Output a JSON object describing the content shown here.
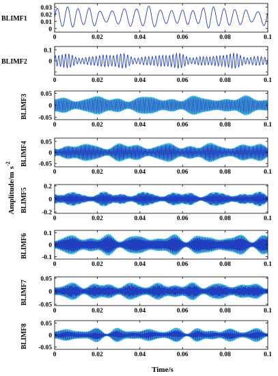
{
  "chart_data": {
    "type": "line",
    "xlabel": "Time/s",
    "ylabel_main": "Amplitude/m",
    "ylabel_unit": "s",
    "ylabel_exp": "-2",
    "xlim": [
      0,
      0.1
    ],
    "xticks": [
      0,
      0.02,
      0.04,
      0.06,
      0.08,
      0.1
    ],
    "xtick_labels": [
      "0",
      "0.02",
      "0.04",
      "0.06",
      "0.08",
      "0.1"
    ],
    "colors": {
      "signal": "#1f3fbf",
      "fill": "#3fd8e0",
      "axis": "#000000"
    },
    "panels": [
      {
        "name": "BLIMF1",
        "ylim": [
          -0.005,
          0.035
        ],
        "yticks": [
          0,
          0.01,
          0.02,
          0.03
        ],
        "ytick_labels": [
          "0",
          "0.01",
          "0.02",
          "0.03"
        ],
        "waveform": {
          "offset": 0.016,
          "carrier_cycles": 19,
          "base_amp": 0.011,
          "mod_depth": 0.45,
          "filled": false
        }
      },
      {
        "name": "BLIMF2",
        "ylim": [
          -0.13,
          0.13
        ],
        "yticks": [
          -0.1,
          0,
          0.1
        ],
        "ytick_labels": [
          "",
          "0",
          "0.1"
        ],
        "waveform": {
          "offset": 0,
          "carrier_cycles": 62,
          "base_amp": 0.045,
          "mod_depth": 0.6,
          "filled": false
        }
      },
      {
        "name": "BLIMF3",
        "ylim": [
          -0.06,
          0.06
        ],
        "yticks": [
          -0.05,
          0,
          0.05
        ],
        "ytick_labels": [
          "-0.05",
          "0",
          "0.05"
        ],
        "waveform": {
          "offset": 0,
          "carrier_cycles": 180,
          "base_amp": 0.026,
          "mod_depth": 0.55,
          "filled": true
        }
      },
      {
        "name": "BLIMF4",
        "ylim": [
          -0.065,
          0.065
        ],
        "yticks": [
          -0.05,
          0,
          0.05
        ],
        "ytick_labels": [
          "-0.05",
          "0",
          "0.05"
        ],
        "waveform": {
          "offset": 0,
          "carrier_cycles": 260,
          "base_amp": 0.028,
          "mod_depth": 0.6,
          "filled": true
        }
      },
      {
        "name": "BLIMF5",
        "ylim": [
          -0.22,
          0.22
        ],
        "yticks": [
          -0.2,
          0,
          0.2
        ],
        "ytick_labels": [
          "-0.2",
          "0",
          "0.2"
        ],
        "waveform": {
          "offset": 0,
          "carrier_cycles": 340,
          "base_amp": 0.07,
          "mod_depth": 0.7,
          "filled": true
        }
      },
      {
        "name": "BLIMF6",
        "ylim": [
          -0.12,
          0.12
        ],
        "yticks": [
          -0.1,
          0,
          0.1
        ],
        "ytick_labels": [
          "-0.1",
          "0",
          "0.1"
        ],
        "waveform": {
          "offset": 0,
          "carrier_cycles": 420,
          "base_amp": 0.055,
          "mod_depth": 0.65,
          "filled": true
        }
      },
      {
        "name": "BLIMF7",
        "ylim": [
          -0.055,
          0.055
        ],
        "yticks": [
          -0.05,
          0,
          0.05
        ],
        "ytick_labels": [
          "-0.05",
          "0",
          "0.05"
        ],
        "waveform": {
          "offset": 0,
          "carrier_cycles": 520,
          "base_amp": 0.022,
          "mod_depth": 0.6,
          "filled": true
        }
      },
      {
        "name": "BLIMF8",
        "ylim": [
          -0.06,
          0.06
        ],
        "yticks": [
          -0.05,
          0,
          0.05
        ],
        "ytick_labels": [
          "-0.05",
          "0",
          "0.05"
        ],
        "waveform": {
          "offset": 0,
          "carrier_cycles": 600,
          "base_amp": 0.018,
          "mod_depth": 0.75,
          "filled": true
        }
      }
    ]
  }
}
